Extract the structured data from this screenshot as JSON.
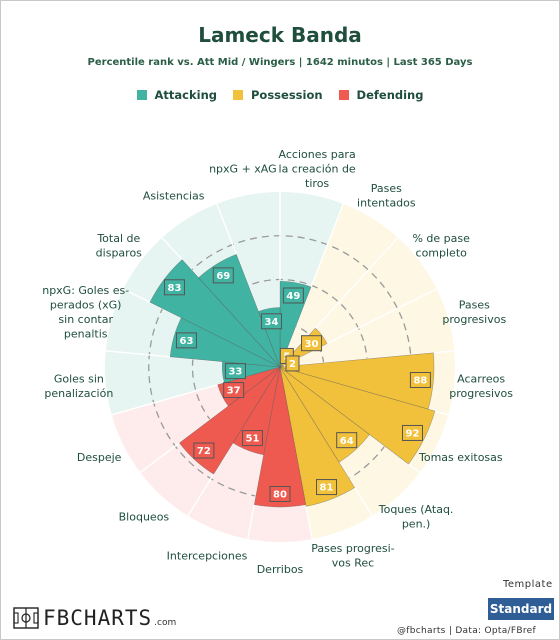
{
  "title": "Lameck Banda",
  "subtitle": "Percentile rank vs. Att Mid / Wingers | 1642 minutos | Last 365 Days",
  "legend": [
    {
      "label": "Attacking",
      "color": "#41b3a3"
    },
    {
      "label": "Possession",
      "color": "#f2c13b"
    },
    {
      "label": "Defending",
      "color": "#ef5a50"
    }
  ],
  "colors": {
    "attacking": "#41b3a3",
    "possession": "#f2c13b",
    "defending": "#ef5a50",
    "attacking_bg": "#e6f5f2",
    "possession_bg": "#fdf7e4",
    "defending_bg": "#fdeceb"
  },
  "chart_data": {
    "type": "polar_bar",
    "rlim": [
      0,
      100
    ],
    "grid_circles": [
      25,
      50,
      75
    ],
    "categories": [
      "Acciones para la creación de tiros",
      "Pases intentados",
      "% de pase completo",
      "Pases progresivos",
      "Acarreos progresivos",
      "Tomas exitosas",
      "Toques (Ataq. pen.)",
      "Pases progresi-vos Rec",
      "Derribos",
      "Intercepciones",
      "Bloqueos",
      "Despeje",
      "Goles sin penalización",
      "npxG: Goles es-perados (xG) sin contar penaltis",
      "Total de disparos",
      "Asistencias",
      "npxG + xAG"
    ],
    "values": [
      49,
      5,
      30,
      2,
      88,
      92,
      64,
      81,
      80,
      51,
      72,
      37,
      33,
      63,
      83,
      69,
      34
    ],
    "groups": [
      "attacking",
      "possession",
      "possession",
      "possession",
      "possession",
      "possession",
      "possession",
      "possession",
      "defending",
      "defending",
      "defending",
      "defending",
      "attacking",
      "attacking",
      "attacking",
      "attacking",
      "attacking"
    ]
  },
  "axis_labels": [
    [
      "Acciones para",
      "la creación de",
      "tiros"
    ],
    [
      "Pases",
      "intentados"
    ],
    [
      "% de pase",
      "completo"
    ],
    [
      "Pases",
      "progresivos"
    ],
    [
      "Acarreos",
      "progresivos"
    ],
    [
      "Tomas exitosas"
    ],
    [
      "Toques (Ataq.",
      "pen.)"
    ],
    [
      "Pases progresi-",
      "vos Rec"
    ],
    [
      "Derribos"
    ],
    [
      "Intercepciones"
    ],
    [
      "Bloqueos"
    ],
    [
      "Despeje"
    ],
    [
      "Goles sin",
      "penalización"
    ],
    [
      "npxG: Goles es-",
      "perados (xG)",
      "sin contar",
      "penaltis"
    ],
    [
      "Total de",
      "disparos"
    ],
    [
      "Asistencias"
    ],
    [
      "npxG + xAG"
    ]
  ],
  "template": {
    "label": "Template",
    "button": "Standard"
  },
  "logo": {
    "text": "FBCHARTS",
    "suffix": ".com"
  },
  "footer": {
    "credit": "@fbcharts | Data: Opta/FBref"
  }
}
